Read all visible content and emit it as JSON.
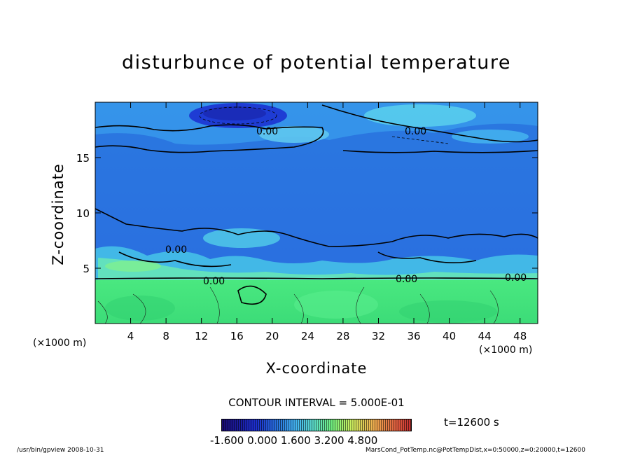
{
  "chart_data": {
    "type": "heatmap",
    "title": "disturbunce of potential temperature",
    "xlabel": "X-coordinate",
    "ylabel": "Z-coordinate",
    "x_unit_left": "(×1000 m)",
    "x_unit_right": "(×1000 m)",
    "xlim": [
      0,
      50
    ],
    "ylim": [
      0,
      20
    ],
    "x_ticks": [
      4,
      8,
      12,
      16,
      20,
      24,
      28,
      32,
      36,
      40,
      44,
      48
    ],
    "y_ticks": [
      5,
      10,
      15
    ],
    "contour_labels": [
      "0.00",
      "0.00",
      "0.00",
      "0.00",
      "0.00",
      "0.00"
    ],
    "contour_interval": "CONTOUR INTERVAL = 5.000E-01",
    "time_label": "t=12600 s",
    "colorbar_labels": [
      "-1.600",
      "0.000",
      "1.600",
      "3.200",
      "4.800"
    ],
    "colormap": [
      "#1a0a70",
      "#1c2fd0",
      "#2a78e0",
      "#46b8f0",
      "#5fe0c0",
      "#70f080",
      "#c8f060",
      "#f0b050",
      "#e06040",
      "#c83030"
    ]
  },
  "footer": {
    "left": "/usr/bin/gpview   2008-10-31",
    "right": "MarsCond_PotTemp.nc@PotTempDist,x=0:50000,z=0:20000,t=12600"
  }
}
